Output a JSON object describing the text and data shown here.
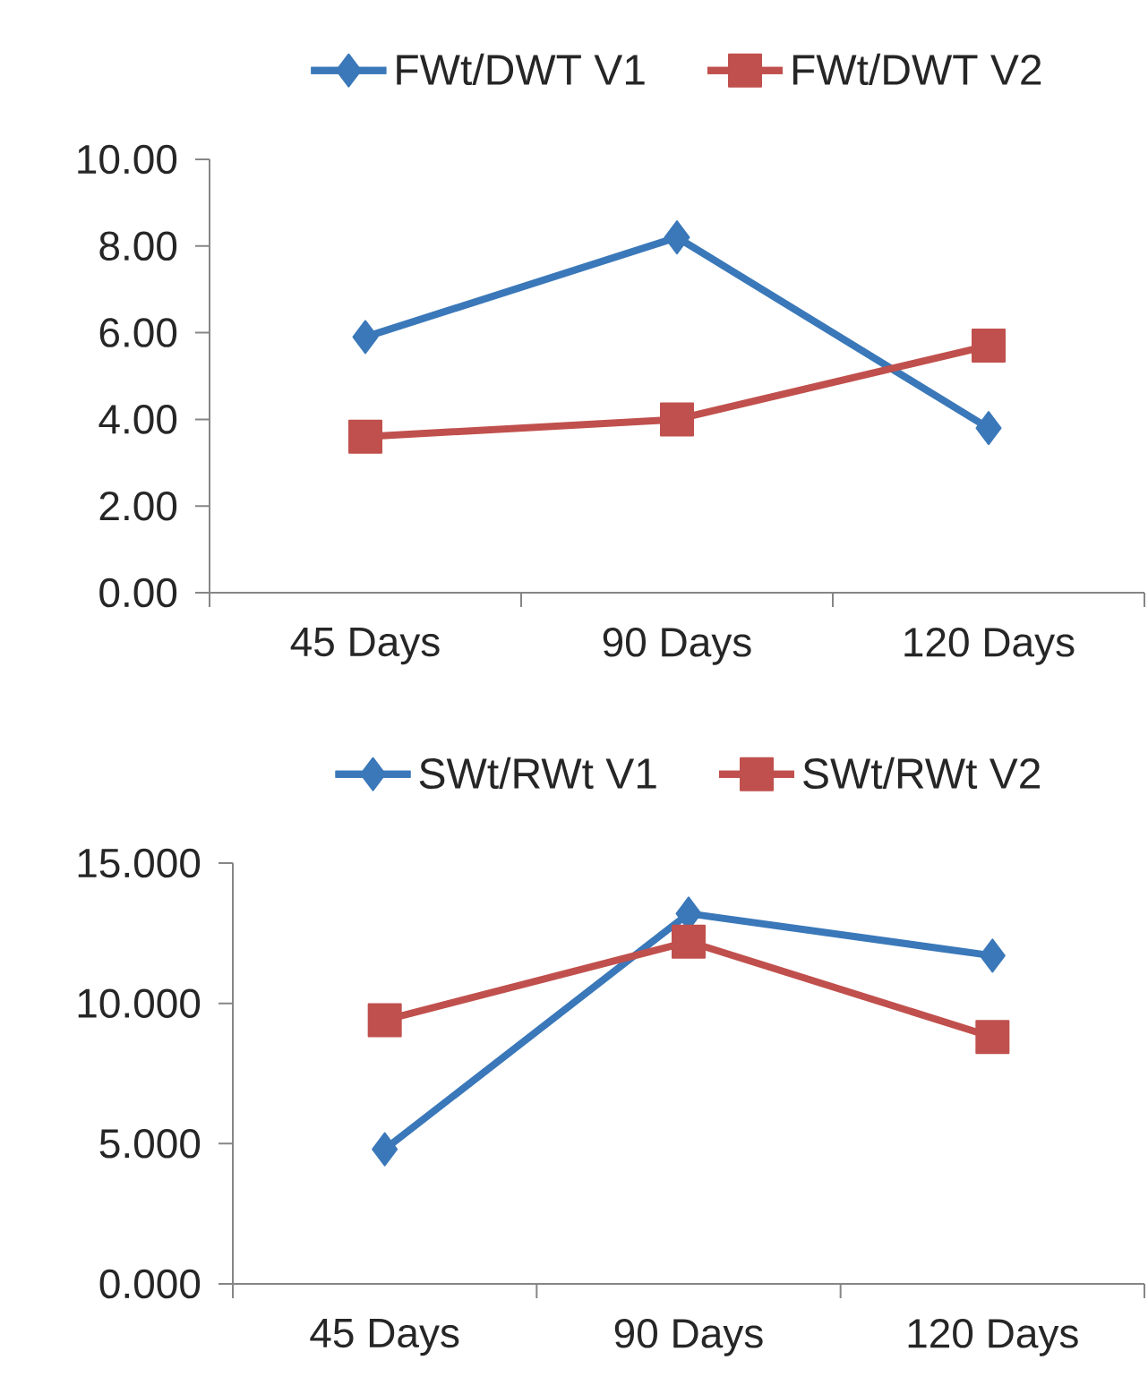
{
  "chart_data": [
    {
      "type": "line",
      "categories": [
        "45 Days",
        "90 Days",
        "120 Days"
      ],
      "series": [
        {
          "name": "FWt/DWT V1",
          "color": "#3a78b9",
          "marker": "diamond",
          "values": [
            5.9,
            8.2,
            3.8
          ]
        },
        {
          "name": "FWt/DWT V2",
          "color": "#c0504d",
          "marker": "square",
          "values": [
            3.6,
            4.0,
            5.7
          ]
        }
      ],
      "ylim": [
        0,
        10
      ],
      "yticks": [
        {
          "value": 0,
          "label": "0.00"
        },
        {
          "value": 2,
          "label": "2.00"
        },
        {
          "value": 4,
          "label": "4.00"
        },
        {
          "value": 6,
          "label": "6.00"
        },
        {
          "value": 8,
          "label": "8.00"
        },
        {
          "value": 10,
          "label": "10.00"
        }
      ],
      "legend": "top"
    },
    {
      "type": "line",
      "categories": [
        "45 Days",
        "90 Days",
        "120 Days"
      ],
      "series": [
        {
          "name": "SWt/RWt V1",
          "color": "#3a78b9",
          "marker": "diamond",
          "values": [
            4.8,
            13.2,
            11.7
          ]
        },
        {
          "name": "SWt/RWt V2",
          "color": "#c0504d",
          "marker": "square",
          "values": [
            9.4,
            12.2,
            8.8
          ]
        }
      ],
      "ylim": [
        0,
        15
      ],
      "yticks": [
        {
          "value": 0,
          "label": "0.000"
        },
        {
          "value": 5,
          "label": "5.000"
        },
        {
          "value": 10,
          "label": "10.000"
        },
        {
          "value": 15,
          "label": "15.000"
        }
      ],
      "legend": "top"
    }
  ]
}
